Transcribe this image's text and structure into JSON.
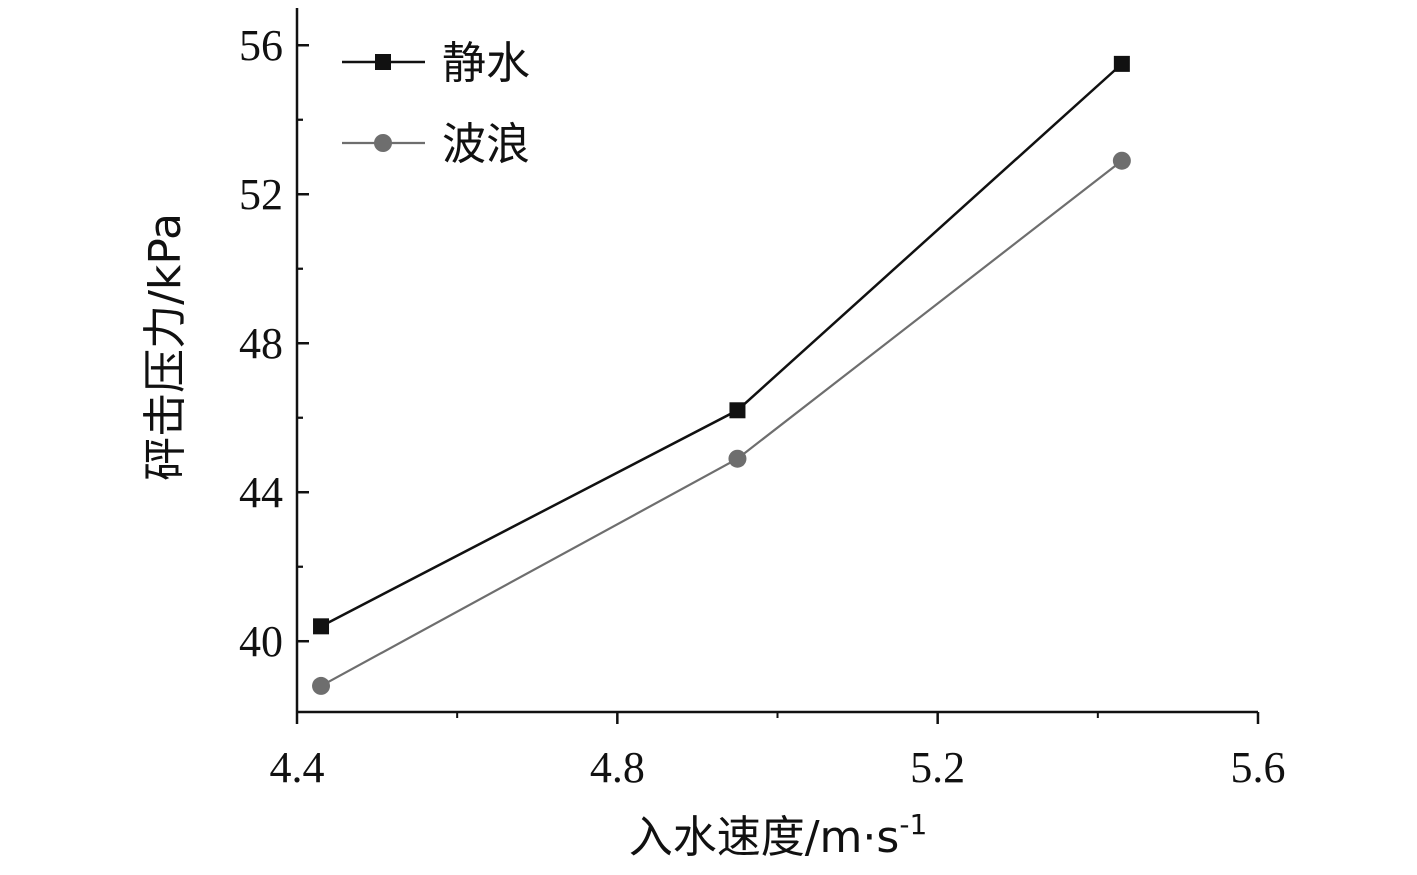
{
  "chart_data": {
    "type": "line",
    "xlabel": "入水速度/m·s",
    "xlabel_superscript": "-1",
    "ylabel": "砰击压力/kPa",
    "xlim": [
      4.4,
      5.6
    ],
    "ylim": [
      38.1,
      57.0
    ],
    "x_ticks": [
      4.4,
      4.8,
      5.2,
      5.6
    ],
    "x_tick_labels": [
      "4.4",
      "4.8",
      "5.2",
      "5.6"
    ],
    "y_ticks": [
      40,
      44,
      48,
      52,
      56
    ],
    "y_tick_labels": [
      "40",
      "44",
      "48",
      "52",
      "56"
    ],
    "grid": false,
    "legend_position": "top-left",
    "series": [
      {
        "name": "静水",
        "marker": "square",
        "color": "#111111",
        "x": [
          4.43,
          4.95,
          5.43
        ],
        "y": [
          40.4,
          46.2,
          55.5
        ]
      },
      {
        "name": "波浪",
        "marker": "circle",
        "color": "#6e6e6e",
        "x": [
          4.43,
          4.95,
          5.43
        ],
        "y": [
          38.8,
          44.9,
          52.9
        ]
      }
    ]
  }
}
